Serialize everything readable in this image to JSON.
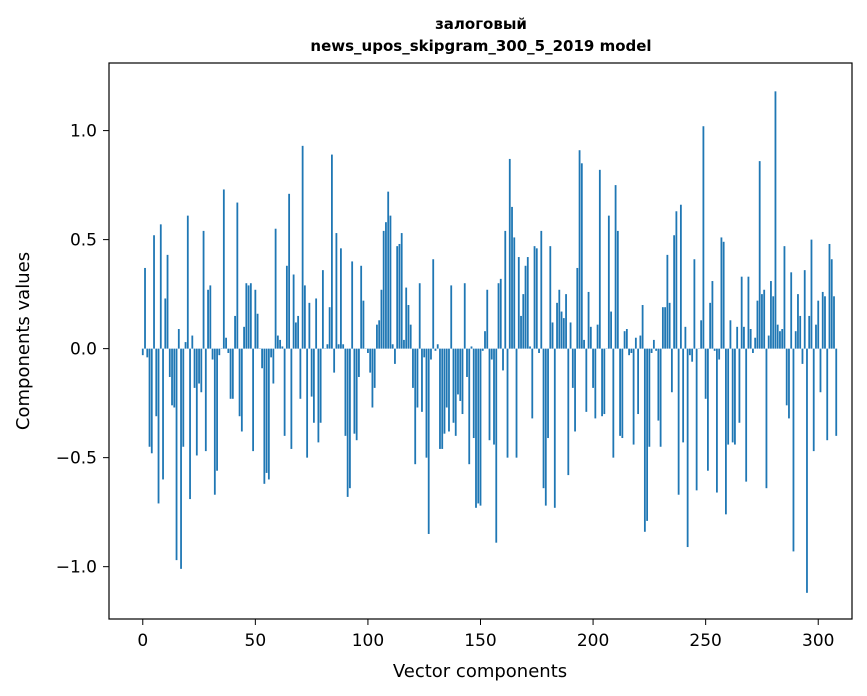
{
  "chart_data": {
    "type": "bar",
    "title_line1": "залоговый",
    "title_line2": "news_upos_skipgram_300_5_2019 model",
    "xlabel": "Vector components",
    "ylabel": "Components values",
    "xlim": [
      -15,
      315
    ],
    "ylim": [
      -1.24,
      1.31
    ],
    "xticks": [
      0,
      50,
      100,
      150,
      200,
      250,
      300
    ],
    "yticks": [
      -1.0,
      -0.5,
      0.0,
      0.5,
      1.0
    ],
    "ytick_labels": [
      "−1.0",
      "−0.5",
      "0.0",
      "0.5",
      "1.0"
    ],
    "bar_color": "#1f77b4",
    "values": [
      -0.03,
      0.37,
      -0.04,
      -0.45,
      -0.48,
      0.52,
      -0.31,
      -0.71,
      0.57,
      -0.6,
      0.23,
      0.43,
      -0.13,
      -0.26,
      -0.27,
      -0.97,
      0.09,
      -1.01,
      -0.45,
      0.03,
      0.61,
      -0.69,
      0.06,
      -0.18,
      -0.49,
      -0.16,
      -0.2,
      0.54,
      -0.47,
      0.27,
      0.29,
      -0.05,
      -0.67,
      -0.56,
      -0.03,
      0.0,
      0.73,
      0.05,
      -0.02,
      -0.23,
      -0.23,
      0.15,
      0.67,
      -0.31,
      -0.38,
      0.1,
      0.3,
      0.29,
      0.3,
      -0.47,
      0.27,
      0.16,
      0.0,
      -0.09,
      -0.62,
      -0.57,
      -0.6,
      -0.04,
      -0.16,
      0.55,
      0.06,
      0.04,
      0.01,
      -0.4,
      0.38,
      0.71,
      -0.46,
      0.34,
      0.12,
      0.15,
      -0.23,
      0.93,
      0.29,
      -0.5,
      0.21,
      -0.22,
      -0.34,
      0.23,
      -0.43,
      -0.34,
      0.36,
      0.0,
      0.02,
      0.19,
      0.89,
      -0.11,
      0.53,
      0.02,
      0.46,
      0.02,
      -0.4,
      -0.68,
      -0.64,
      0.4,
      -0.39,
      -0.42,
      -0.13,
      0.38,
      0.22,
      0.0,
      -0.02,
      -0.11,
      -0.27,
      -0.18,
      0.11,
      0.13,
      0.27,
      0.54,
      0.58,
      0.72,
      0.61,
      0.02,
      -0.07,
      0.47,
      0.48,
      0.53,
      0.04,
      0.28,
      0.2,
      0.11,
      -0.18,
      -0.53,
      -0.27,
      0.3,
      -0.29,
      -0.04,
      -0.5,
      -0.85,
      -0.05,
      0.41,
      -0.01,
      0.02,
      -0.46,
      -0.46,
      -0.39,
      -0.27,
      -0.38,
      0.29,
      -0.34,
      -0.4,
      -0.21,
      -0.24,
      -0.3,
      0.3,
      -0.13,
      -0.53,
      0.01,
      -0.41,
      -0.73,
      -0.71,
      -0.72,
      -0.01,
      0.08,
      0.27,
      -0.42,
      -0.05,
      -0.44,
      -0.89,
      0.3,
      0.32,
      -0.1,
      0.54,
      -0.5,
      0.87,
      0.65,
      0.51,
      -0.5,
      0.42,
      0.15,
      0.25,
      0.38,
      0.42,
      0.01,
      -0.32,
      0.47,
      0.46,
      -0.02,
      0.54,
      -0.64,
      -0.72,
      -0.41,
      0.47,
      0.12,
      -0.73,
      0.21,
      0.27,
      0.17,
      0.14,
      0.25,
      -0.58,
      0.12,
      -0.18,
      -0.38,
      0.37,
      0.91,
      0.85,
      0.04,
      -0.29,
      0.26,
      0.1,
      -0.18,
      -0.32,
      0.11,
      0.82,
      -0.31,
      -0.3,
      0.0,
      0.61,
      0.17,
      -0.5,
      0.75,
      0.54,
      -0.4,
      -0.41,
      0.08,
      0.09,
      -0.03,
      -0.02,
      -0.44,
      0.05,
      -0.3,
      0.06,
      0.2,
      -0.84,
      -0.79,
      -0.45,
      -0.02,
      0.04,
      -0.01,
      -0.33,
      -0.45,
      0.19,
      0.19,
      0.43,
      0.21,
      -0.2,
      0.52,
      0.63,
      -0.67,
      0.66,
      -0.43,
      0.1,
      -0.91,
      -0.03,
      -0.06,
      0.41,
      -0.65,
      0.0,
      0.13,
      1.02,
      -0.23,
      -0.56,
      0.21,
      0.31,
      -0.01,
      -0.66,
      -0.05,
      0.51,
      0.49,
      -0.76,
      -0.44,
      0.13,
      -0.43,
      -0.44,
      0.1,
      -0.34,
      0.33,
      0.1,
      -0.61,
      0.33,
      0.09,
      -0.02,
      0.05,
      0.22,
      0.86,
      0.25,
      0.27,
      -0.64,
      0.06,
      0.31,
      0.24,
      1.18,
      0.11,
      0.08,
      0.09,
      0.47,
      -0.26,
      -0.32,
      0.35,
      -0.93,
      0.08,
      0.25,
      0.15,
      -0.07,
      0.36,
      -1.12,
      0.15,
      0.5,
      -0.47,
      0.11,
      0.22,
      -0.2,
      0.26,
      0.24,
      -0.42,
      0.48,
      0.41,
      0.24,
      -0.4
    ]
  }
}
